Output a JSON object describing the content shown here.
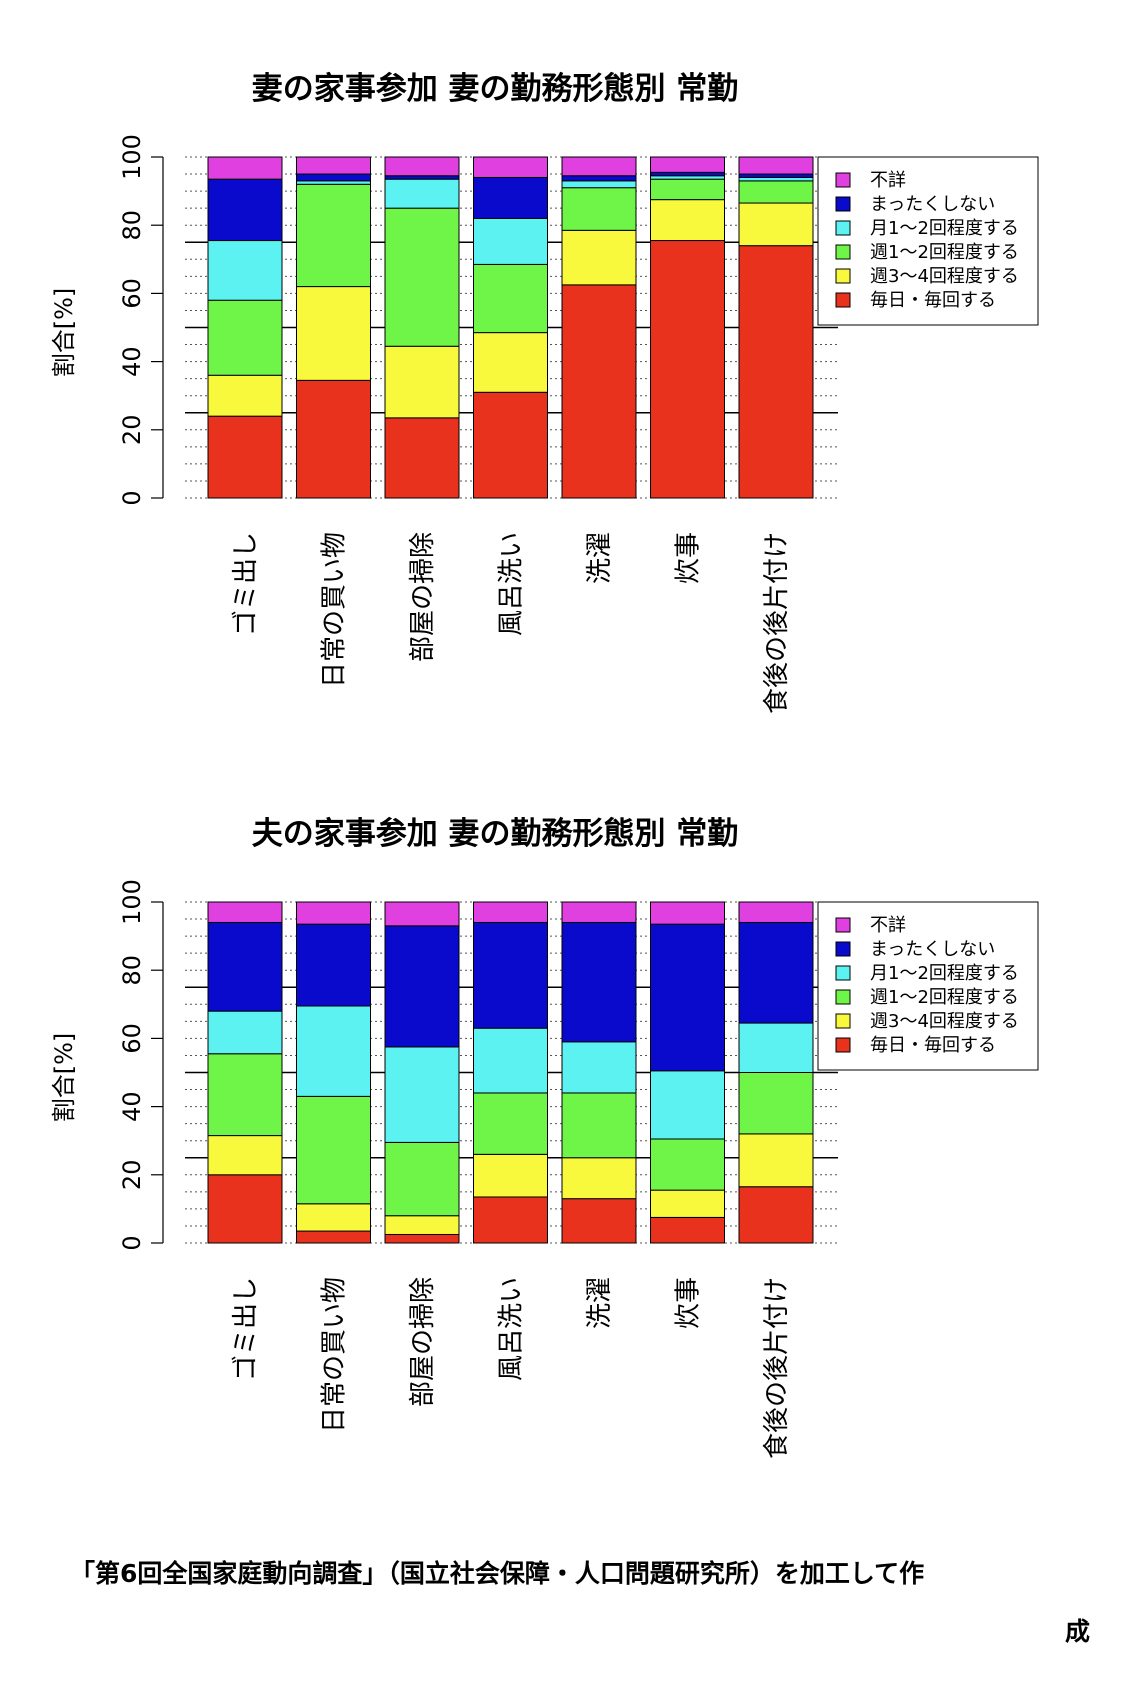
{
  "legend_labels": [
    "不詳",
    "まったくしない",
    "月1～2回程度する",
    "週1～2回程度する",
    "週3～4回程度する",
    "毎日・毎回する"
  ],
  "colors": {
    "不詳": "#e040e0",
    "まったくしない": "#0a0acd",
    "月1～2回程度する": "#5cf2f2",
    "週1～2回程度する": "#6ef548",
    "週3～4回程度する": "#f8f83c",
    "毎日・毎回する": "#e8321e"
  },
  "chart_data": [
    {
      "type": "bar",
      "stacked": true,
      "title": "妻の家事参加  妻の勤務形態別  常勤",
      "ylabel": "割合[%]",
      "ylim": [
        0,
        100
      ],
      "yticks": [
        "0",
        "20",
        "40",
        "60",
        "80",
        "100"
      ],
      "categories": [
        "ゴミ出し",
        "日常の買い物",
        "部屋の掃除",
        "風呂洗い",
        "洗濯",
        "炊事",
        "食後の後片付け"
      ],
      "legend_position": "right",
      "series": [
        {
          "name": "毎日・毎回する",
          "values": [
            24,
            34.5,
            23.5,
            31,
            62.5,
            75.5,
            74
          ]
        },
        {
          "name": "週3～4回程度する",
          "values": [
            12,
            27.5,
            21,
            17.5,
            16,
            12,
            12.5
          ]
        },
        {
          "name": "週1～2回程度する",
          "values": [
            22,
            30,
            40.5,
            20,
            12.5,
            6,
            6.5
          ]
        },
        {
          "name": "月1～2回程度する",
          "values": [
            17.5,
            1,
            8.5,
            13.5,
            2,
            1,
            1
          ]
        },
        {
          "name": "まったくしない",
          "values": [
            18,
            2,
            1,
            12,
            1.5,
            1,
            1
          ]
        },
        {
          "name": "不詳",
          "values": [
            6.5,
            5,
            5.5,
            6,
            5.5,
            4.5,
            5
          ]
        }
      ]
    },
    {
      "type": "bar",
      "stacked": true,
      "title": "夫の家事参加  妻の勤務形態別  常勤",
      "ylabel": "割合[%]",
      "ylim": [
        0,
        100
      ],
      "yticks": [
        "0",
        "20",
        "40",
        "60",
        "80",
        "100"
      ],
      "categories": [
        "ゴミ出し",
        "日常の買い物",
        "部屋の掃除",
        "風呂洗い",
        "洗濯",
        "炊事",
        "食後の後片付け"
      ],
      "legend_position": "right",
      "series": [
        {
          "name": "毎日・毎回する",
          "values": [
            20,
            3.5,
            2.5,
            13.5,
            13,
            7.5,
            16.5
          ]
        },
        {
          "name": "週3～4回程度する",
          "values": [
            11.5,
            8,
            5.5,
            12.5,
            12,
            8,
            15.5
          ]
        },
        {
          "name": "週1～2回程度する",
          "values": [
            24,
            31.5,
            21.5,
            18,
            19,
            15,
            18
          ]
        },
        {
          "name": "月1～2回程度する",
          "values": [
            12.5,
            26.5,
            28,
            19,
            15,
            20,
            14.5
          ]
        },
        {
          "name": "まったくしない",
          "values": [
            26,
            24,
            35.5,
            31,
            35,
            43,
            29.5
          ]
        },
        {
          "name": "不詳",
          "values": [
            6,
            6.5,
            7,
            6,
            6,
            6.5,
            6
          ]
        }
      ]
    }
  ],
  "source": {
    "line1": "「第6回全国家庭動向調査」（国立社会保障・人口問題研究所）を加工して作",
    "line2": "成"
  }
}
